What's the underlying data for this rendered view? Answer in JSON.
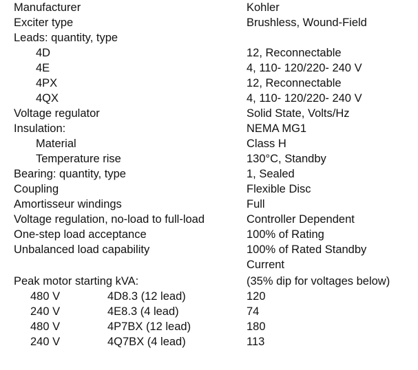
{
  "specs": [
    {
      "label": "Manufacturer",
      "value": "Kohler",
      "indent": false
    },
    {
      "label": "Exciter type",
      "value": "Brushless, Wound-Field",
      "indent": false
    },
    {
      "label": "Leads: quantity, type",
      "value": "",
      "indent": false
    },
    {
      "label": "4D",
      "value": "12, Reconnectable",
      "indent": true
    },
    {
      "label": "4E",
      "value": "4, 110- 120/220- 240 V",
      "indent": true
    },
    {
      "label": "4PX",
      "value": "12, Reconnectable",
      "indent": true
    },
    {
      "label": "4QX",
      "value": "4, 110- 120/220- 240 V",
      "indent": true
    },
    {
      "label": "Voltage regulator",
      "value": "Solid State, Volts/Hz",
      "indent": false
    },
    {
      "label": "Insulation:",
      "value": "NEMA MG1",
      "indent": false
    },
    {
      "label": "Material",
      "value": "Class H",
      "indent": true
    },
    {
      "label": "Temperature rise",
      "value": "130°C, Standby",
      "indent": true
    },
    {
      "label": "Bearing: quantity, type",
      "value": "1, Sealed",
      "indent": false
    },
    {
      "label": "Coupling",
      "value": "Flexible Disc",
      "indent": false
    },
    {
      "label": "Amortisseur windings",
      "value": "Full",
      "indent": false
    },
    {
      "label": "Voltage regulation, no-load to full-load",
      "value": "Controller Dependent",
      "indent": false
    },
    {
      "label": "One-step load acceptance",
      "value": "100% of Rating",
      "indent": false
    },
    {
      "label": "Unbalanced load capability",
      "value": "100% of Rated Standby",
      "indent": false
    },
    {
      "label": "",
      "value": "Current",
      "indent": false
    }
  ],
  "motor_starting": {
    "label": "Peak motor starting kVA:",
    "note": "(35% dip for voltages below)",
    "rows": [
      {
        "voltage": "480 V",
        "model": "4D8.3 (12 lead)",
        "kva": "120"
      },
      {
        "voltage": "240 V",
        "model": "4E8.3 (4 lead)",
        "kva": "74"
      },
      {
        "voltage": "480 V",
        "model": "4P7BX (12 lead)",
        "kva": "180"
      },
      {
        "voltage": "240 V",
        "model": "4Q7BX (4 lead)",
        "kva": "113"
      }
    ]
  }
}
